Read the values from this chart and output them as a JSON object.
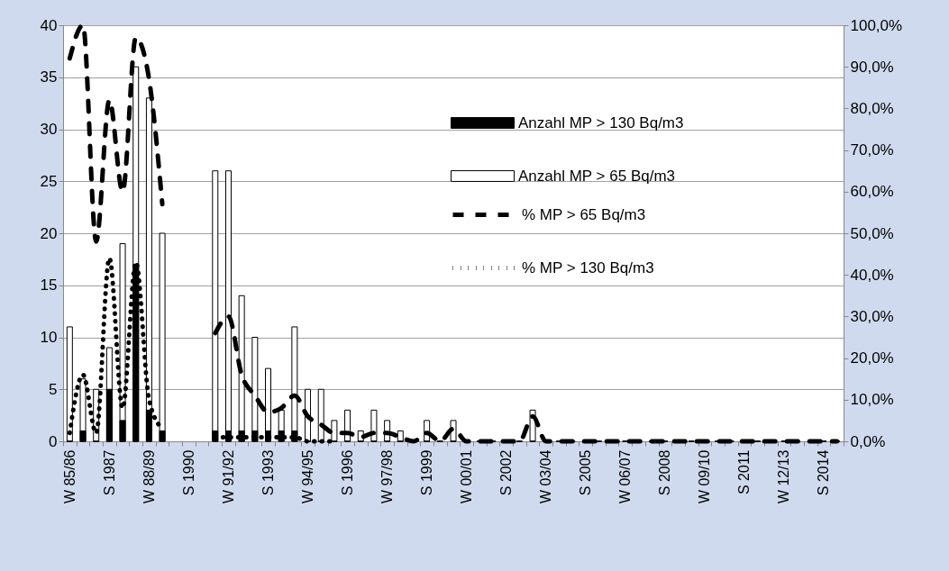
{
  "chart_data": {
    "type": "bar",
    "categories": [
      "W 85/86",
      null,
      null,
      "S 1987",
      null,
      null,
      "W 88/89",
      null,
      null,
      "S 1990",
      null,
      null,
      "W 91/92",
      null,
      null,
      "S 1993",
      null,
      null,
      "W 94/95",
      null,
      null,
      "S 1996",
      null,
      null,
      "W 97/98",
      null,
      null,
      "S 1999",
      null,
      null,
      "W 00/01",
      null,
      null,
      "S 2002",
      null,
      null,
      "W 03/04",
      null,
      null,
      "S 2005",
      null,
      null,
      "W 06/07",
      null,
      null,
      "S 2008",
      null,
      null,
      "W 09/10",
      null,
      null,
      "S 2011",
      null,
      null,
      "W 12/13",
      null,
      null,
      "S 2014",
      null
    ],
    "ylim": [
      0,
      40
    ],
    "yticks": [
      0,
      5,
      10,
      15,
      20,
      25,
      30,
      35,
      40
    ],
    "y2lim": [
      0,
      100
    ],
    "y2ticks": [
      {
        "value": 0,
        "label": "0,0%"
      },
      {
        "value": 10,
        "label": "10,0%"
      },
      {
        "value": 20,
        "label": "20,0%"
      },
      {
        "value": 30,
        "label": "30,0%"
      },
      {
        "value": 40,
        "label": "40,0%"
      },
      {
        "value": 50,
        "label": "50,0%"
      },
      {
        "value": 60,
        "label": "60,0%"
      },
      {
        "value": 70,
        "label": "70,0%"
      },
      {
        "value": 80,
        "label": "80,0%"
      },
      {
        "value": 90,
        "label": "90,0%"
      },
      {
        "value": 100,
        "label": "100,0%"
      }
    ],
    "grid": "y",
    "legend": "top right",
    "series": [
      {
        "name": "Anzahl MP > 130 Bq/m3",
        "color": "#000000",
        "values": [
          0,
          1,
          0,
          5,
          2,
          17,
          3,
          1,
          null,
          null,
          null,
          1,
          1,
          1,
          1,
          1,
          1,
          1,
          0,
          0,
          0,
          0,
          0,
          0,
          0,
          0,
          0,
          0,
          0,
          0,
          0,
          0,
          0,
          0,
          0,
          0,
          0,
          0,
          0,
          0,
          0,
          0,
          0,
          0,
          0,
          0,
          0,
          0,
          0,
          0,
          0,
          0,
          0,
          0,
          0,
          0,
          0,
          0,
          0
        ]
      },
      {
        "name": "Anzahl MP > 65 Bq/m3",
        "color": "#ffffff",
        "values": [
          11,
          6,
          5,
          9,
          19,
          36,
          33,
          20,
          null,
          null,
          null,
          26,
          26,
          14,
          10,
          7,
          3,
          11,
          5,
          5,
          2,
          3,
          1,
          3,
          2,
          1,
          0,
          2,
          0,
          2,
          0,
          0,
          0,
          0,
          0,
          3,
          0,
          0,
          0,
          0,
          0,
          0,
          0,
          0,
          0,
          0,
          0,
          0,
          0,
          0,
          0,
          0,
          0,
          0,
          0,
          0,
          0,
          0,
          0
        ]
      },
      {
        "name": "% MP > 65 Bq/m3",
        "type": "line",
        "axis": "y2",
        "color": "#000000",
        "line_style": "dashed",
        "values": [
          92,
          100,
          48,
          82,
          60,
          97,
          87,
          57,
          null,
          null,
          null,
          26,
          30,
          16,
          11,
          7,
          8,
          11,
          6,
          4,
          2,
          2,
          1,
          2,
          2,
          1,
          0,
          2,
          0,
          3,
          0,
          0,
          0,
          0,
          0,
          6,
          0,
          0,
          0,
          0,
          0,
          0,
          0,
          0,
          0,
          0,
          0,
          0,
          0,
          0,
          0,
          0,
          0,
          0,
          0,
          0,
          0,
          0,
          0
        ]
      },
      {
        "name": "% MP > 130 Bq/m3",
        "type": "line",
        "axis": "y2",
        "color": "#000000",
        "line_style": "dotted",
        "values": [
          2,
          16,
          2,
          44,
          8,
          43,
          10,
          3,
          null,
          null,
          null,
          1,
          1,
          1,
          1,
          1,
          1,
          1,
          0,
          0,
          0,
          null,
          null,
          null,
          null,
          null,
          null,
          null,
          null,
          null,
          null,
          null,
          null,
          null,
          null,
          null,
          null,
          null,
          null,
          null,
          null,
          null,
          null,
          null,
          null,
          null,
          null,
          null,
          null,
          null,
          null,
          null,
          null,
          null,
          null,
          null,
          null,
          null,
          null
        ]
      }
    ]
  }
}
